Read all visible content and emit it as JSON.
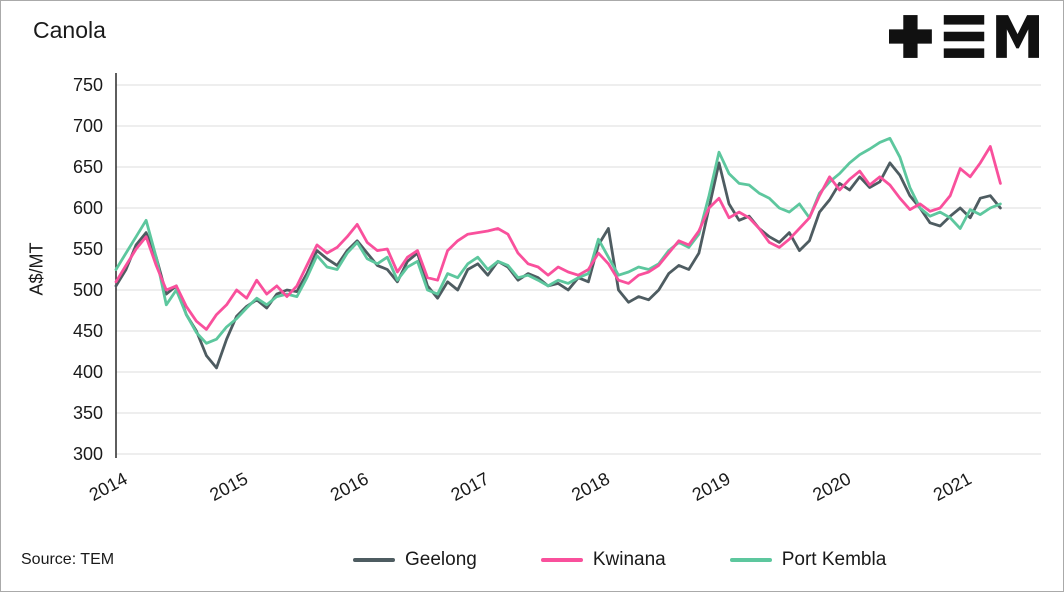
{
  "title": "Canola",
  "logo": {
    "name": "TEM"
  },
  "source": "Source: TEM",
  "chart_data": {
    "type": "line",
    "title": "Canola",
    "xlabel": "",
    "ylabel": "A$/MT",
    "ylim": [
      300,
      750
    ],
    "xlim": [
      2014,
      2021.67
    ],
    "y_ticks": [
      750,
      700,
      650,
      600,
      550,
      500,
      450,
      400,
      350,
      300
    ],
    "x_ticks": [
      2014,
      2015,
      2016,
      2017,
      2018,
      2019,
      2020,
      2021
    ],
    "grid": "horizontal",
    "legend_position": "bottom",
    "colors": {
      "grid": "#dcdcdc",
      "axis": "#1a1a1a",
      "text": "#1a1a1a"
    },
    "x": [
      2014.0,
      2014.083,
      2014.167,
      2014.25,
      2014.333,
      2014.417,
      2014.5,
      2014.583,
      2014.667,
      2014.75,
      2014.833,
      2014.917,
      2015.0,
      2015.083,
      2015.167,
      2015.25,
      2015.333,
      2015.417,
      2015.5,
      2015.583,
      2015.667,
      2015.75,
      2015.833,
      2015.917,
      2016.0,
      2016.083,
      2016.167,
      2016.25,
      2016.333,
      2016.417,
      2016.5,
      2016.583,
      2016.667,
      2016.75,
      2016.833,
      2016.917,
      2017.0,
      2017.083,
      2017.167,
      2017.25,
      2017.333,
      2017.417,
      2017.5,
      2017.583,
      2017.667,
      2017.75,
      2017.833,
      2017.917,
      2018.0,
      2018.083,
      2018.167,
      2018.25,
      2018.333,
      2018.417,
      2018.5,
      2018.583,
      2018.667,
      2018.75,
      2018.833,
      2018.917,
      2019.0,
      2019.083,
      2019.167,
      2019.25,
      2019.333,
      2019.417,
      2019.5,
      2019.583,
      2019.667,
      2019.75,
      2019.833,
      2019.917,
      2020.0,
      2020.083,
      2020.167,
      2020.25,
      2020.333,
      2020.417,
      2020.5,
      2020.583,
      2020.667,
      2020.75,
      2020.833,
      2020.917,
      2021.0,
      2021.083,
      2021.167,
      2021.25,
      2021.333
    ],
    "series": [
      {
        "name": "Geelong",
        "color": "#4e5c61",
        "values": [
          505,
          525,
          555,
          570,
          540,
          495,
          505,
          470,
          450,
          420,
          405,
          440,
          468,
          480,
          488,
          478,
          495,
          500,
          498,
          520,
          548,
          538,
          530,
          548,
          560,
          545,
          530,
          525,
          510,
          535,
          545,
          505,
          490,
          510,
          500,
          525,
          532,
          518,
          535,
          528,
          512,
          520,
          515,
          505,
          508,
          500,
          515,
          510,
          555,
          575,
          500,
          485,
          492,
          488,
          500,
          520,
          530,
          525,
          545,
          600,
          655,
          605,
          585,
          590,
          575,
          565,
          558,
          570,
          548,
          560,
          595,
          610,
          630,
          622,
          638,
          625,
          632,
          655,
          640,
          615,
          600,
          582,
          578,
          590,
          600,
          588,
          612,
          615,
          600
        ]
      },
      {
        "name": "Kwinana",
        "color": "#f9509c",
        "values": [
          510,
          530,
          550,
          565,
          530,
          500,
          505,
          480,
          462,
          452,
          470,
          482,
          500,
          490,
          512,
          495,
          505,
          492,
          505,
          530,
          555,
          545,
          552,
          565,
          580,
          558,
          548,
          550,
          522,
          540,
          548,
          515,
          512,
          548,
          560,
          568,
          570,
          572,
          575,
          568,
          545,
          532,
          528,
          518,
          528,
          522,
          518,
          525,
          545,
          532,
          512,
          508,
          518,
          522,
          530,
          545,
          560,
          555,
          572,
          600,
          612,
          588,
          595,
          588,
          575,
          558,
          552,
          562,
          575,
          588,
          615,
          638,
          622,
          635,
          645,
          628,
          638,
          628,
          612,
          598,
          605,
          596,
          600,
          615,
          648,
          638,
          655,
          675,
          630
        ]
      },
      {
        "name": "Port Kembla",
        "color": "#5dc79e",
        "values": [
          525,
          545,
          565,
          585,
          540,
          482,
          500,
          470,
          448,
          435,
          440,
          455,
          465,
          478,
          490,
          482,
          492,
          495,
          492,
          515,
          542,
          528,
          525,
          545,
          558,
          538,
          532,
          540,
          512,
          528,
          535,
          500,
          495,
          520,
          515,
          532,
          540,
          525,
          535,
          530,
          515,
          518,
          512,
          505,
          512,
          508,
          515,
          520,
          562,
          540,
          518,
          522,
          528,
          525,
          532,
          548,
          558,
          552,
          568,
          615,
          668,
          642,
          630,
          628,
          618,
          612,
          600,
          595,
          605,
          588,
          618,
          632,
          642,
          655,
          665,
          672,
          680,
          685,
          662,
          625,
          600,
          590,
          595,
          588,
          575,
          598,
          592,
          600,
          605
        ]
      }
    ]
  }
}
